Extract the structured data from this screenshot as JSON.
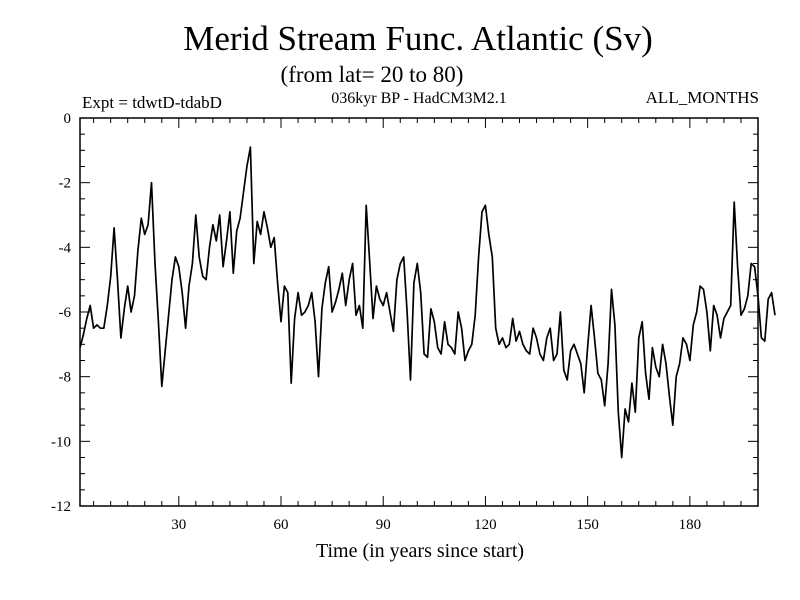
{
  "chart_data": {
    "type": "line",
    "title": "Merid Stream Func. Atlantic (Sv)",
    "subtitle": "(from lat= 20 to 80)",
    "experiment_label": "Expt = tdwtD-tdabD",
    "run_label": "036kyr BP - HadCM3M2.1",
    "period_label": "ALL_MONTHS",
    "xlabel": "Time (in years since start)",
    "ylabel": "",
    "xlim": [
      1,
      200
    ],
    "ylim": [
      -12,
      0
    ],
    "x_ticks": [
      30,
      60,
      90,
      120,
      150,
      180
    ],
    "y_ticks": [
      0,
      -2,
      -4,
      -6,
      -8,
      -10,
      -12
    ],
    "series": [
      {
        "name": "Merid Stream Func. Atlantic",
        "x_start": 1,
        "x_step": 1,
        "values": [
          -7.1,
          -6.7,
          -6.2,
          -5.8,
          -6.5,
          -6.4,
          -6.5,
          -6.5,
          -5.8,
          -4.9,
          -3.4,
          -5.0,
          -6.8,
          -5.9,
          -5.2,
          -6.0,
          -5.5,
          -4.1,
          -3.1,
          -3.6,
          -3.3,
          -2.0,
          -4.5,
          -6.3,
          -8.3,
          -7.2,
          -6.1,
          -5.0,
          -4.3,
          -4.6,
          -5.4,
          -6.5,
          -5.2,
          -4.5,
          -3.0,
          -4.3,
          -4.9,
          -5.0,
          -4.0,
          -3.3,
          -3.8,
          -3.0,
          -4.6,
          -3.8,
          -2.9,
          -4.8,
          -3.5,
          -3.1,
          -2.3,
          -1.5,
          -0.9,
          -4.5,
          -3.2,
          -3.6,
          -2.9,
          -3.4,
          -4.0,
          -3.7,
          -5.1,
          -6.3,
          -5.2,
          -5.4,
          -8.2,
          -6.2,
          -5.4,
          -6.1,
          -6.0,
          -5.8,
          -5.4,
          -6.3,
          -8.0,
          -5.9,
          -5.1,
          -4.6,
          -6.0,
          -5.7,
          -5.3,
          -4.8,
          -5.8,
          -5.0,
          -4.5,
          -6.1,
          -5.8,
          -6.5,
          -2.7,
          -4.4,
          -6.2,
          -5.2,
          -5.6,
          -5.8,
          -5.4,
          -6.0,
          -6.6,
          -5.0,
          -4.5,
          -4.3,
          -6.0,
          -8.1,
          -5.1,
          -4.5,
          -5.4,
          -7.3,
          -7.4,
          -5.9,
          -6.3,
          -7.1,
          -7.3,
          -6.3,
          -7.0,
          -7.1,
          -7.3,
          -6.0,
          -6.5,
          -7.5,
          -7.2,
          -7.0,
          -6.1,
          -4.3,
          -2.9,
          -2.7,
          -3.6,
          -4.3,
          -6.5,
          -7.0,
          -6.8,
          -7.1,
          -7.0,
          -6.2,
          -6.9,
          -6.6,
          -7.0,
          -7.2,
          -7.3,
          -6.5,
          -6.8,
          -7.3,
          -7.5,
          -6.8,
          -6.5,
          -7.5,
          -7.3,
          -6.0,
          -7.8,
          -8.1,
          -7.2,
          -7.0,
          -7.3,
          -7.6,
          -8.5,
          -7.1,
          -5.8,
          -6.8,
          -7.9,
          -8.1,
          -8.9,
          -7.6,
          -5.3,
          -6.4,
          -9.1,
          -10.5,
          -9.0,
          -9.4,
          -8.2,
          -9.1,
          -6.8,
          -6.3,
          -7.9,
          -8.7,
          -7.1,
          -7.7,
          -8.0,
          -7.0,
          -7.6,
          -8.6,
          -9.5,
          -8.0,
          -7.6,
          -6.8,
          -7.0,
          -7.5,
          -6.4,
          -6.0,
          -5.2,
          -5.3,
          -6.0,
          -7.2,
          -5.8,
          -6.1,
          -6.8,
          -6.2,
          -6.0,
          -5.8,
          -2.6,
          -4.6,
          -6.1,
          -5.9,
          -5.5,
          -4.5,
          -4.6,
          -5.5,
          -6.8,
          -6.9,
          -5.6,
          -5.4,
          -6.1
        ]
      }
    ]
  }
}
